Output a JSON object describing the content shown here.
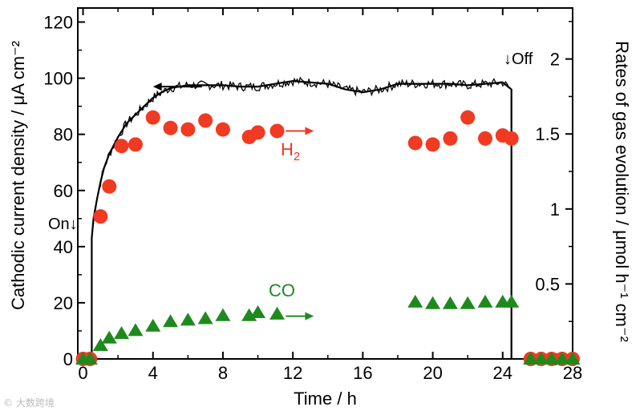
{
  "chart_data": {
    "type": "scatter",
    "xlabel": "Time / h",
    "ylabel_left": "Cathodic current density / μA cm⁻²",
    "ylabel_right": "Rates of gas evolution / μmol h⁻¹ cm⁻²",
    "xlim": [
      -0.3,
      28
    ],
    "ylim_left": [
      0,
      125
    ],
    "ylim_right": [
      0,
      2.34
    ],
    "x_ticks": [
      0,
      4,
      8,
      12,
      16,
      20,
      24,
      28
    ],
    "y_left_ticks": [
      0,
      20,
      40,
      60,
      80,
      100,
      120
    ],
    "y_right_ticks": [
      0,
      0.5,
      1,
      1.5,
      2
    ],
    "y_right_tick_labels": [
      "0",
      "0.5",
      "1",
      "1.5",
      "2"
    ],
    "series": [
      {
        "name": "Current density",
        "kind": "line",
        "axis": "left",
        "color": "#000000",
        "points": [
          [
            0.5,
            0
          ],
          [
            0.5,
            43
          ],
          [
            0.6,
            50
          ],
          [
            0.8,
            57
          ],
          [
            1.0,
            63
          ],
          [
            1.2,
            68
          ],
          [
            1.5,
            73
          ],
          [
            2,
            79
          ],
          [
            2.5,
            84
          ],
          [
            3,
            87
          ],
          [
            3.5,
            90
          ],
          [
            4,
            93
          ],
          [
            4.5,
            95
          ],
          [
            5,
            96.5
          ],
          [
            6,
            97.5
          ],
          [
            7,
            97.5
          ],
          [
            8,
            97.5
          ],
          [
            9,
            97
          ],
          [
            10,
            97
          ],
          [
            11,
            98
          ],
          [
            12,
            99
          ],
          [
            13,
            98.5
          ],
          [
            14,
            98
          ],
          [
            15,
            96
          ],
          [
            16,
            95
          ],
          [
            17,
            96
          ],
          [
            18,
            98
          ],
          [
            19,
            98
          ],
          [
            20,
            98
          ],
          [
            21,
            98
          ],
          [
            22,
            97.5
          ],
          [
            23,
            98
          ],
          [
            24,
            98.5
          ],
          [
            24.5,
            96
          ],
          [
            24.5,
            0
          ]
        ]
      },
      {
        "name": "H₂",
        "kind": "circle",
        "axis": "right",
        "color": "#f03a22",
        "points": [
          [
            0,
            0
          ],
          [
            0.4,
            0
          ],
          [
            1.0,
            0.95
          ],
          [
            1.5,
            1.15
          ],
          [
            2.2,
            1.42
          ],
          [
            3.0,
            1.43
          ],
          [
            4.0,
            1.61
          ],
          [
            5.0,
            1.54
          ],
          [
            6.0,
            1.53
          ],
          [
            7.0,
            1.59
          ],
          [
            8.0,
            1.53
          ],
          [
            9.5,
            1.48
          ],
          [
            10.0,
            1.51
          ],
          [
            11.1,
            1.52
          ],
          [
            19.0,
            1.44
          ],
          [
            20.0,
            1.43
          ],
          [
            21.0,
            1.47
          ],
          [
            22.0,
            1.61
          ],
          [
            23.0,
            1.47
          ],
          [
            24.0,
            1.49
          ],
          [
            24.5,
            1.47
          ],
          [
            25.6,
            0
          ],
          [
            26.2,
            0
          ],
          [
            26.8,
            0
          ],
          [
            27.4,
            0
          ],
          [
            28.0,
            0
          ]
        ]
      },
      {
        "name": "CO",
        "kind": "triangle",
        "axis": "right",
        "color": "#1e8a1e",
        "points": [
          [
            0,
            0
          ],
          [
            0.4,
            0
          ],
          [
            1.0,
            0.09
          ],
          [
            1.5,
            0.14
          ],
          [
            2.2,
            0.17
          ],
          [
            3.0,
            0.19
          ],
          [
            4.0,
            0.22
          ],
          [
            5.0,
            0.25
          ],
          [
            6.0,
            0.26
          ],
          [
            7.0,
            0.27
          ],
          [
            8.0,
            0.29
          ],
          [
            9.5,
            0.29
          ],
          [
            10.0,
            0.31
          ],
          [
            11.1,
            0.3
          ],
          [
            19.0,
            0.38
          ],
          [
            20.0,
            0.37
          ],
          [
            21.0,
            0.37
          ],
          [
            22.0,
            0.37
          ],
          [
            23.0,
            0.38
          ],
          [
            24.0,
            0.38
          ],
          [
            24.5,
            0.38
          ],
          [
            25.6,
            0
          ],
          [
            26.2,
            0
          ],
          [
            26.8,
            0
          ],
          [
            27.4,
            0
          ],
          [
            28.0,
            0
          ]
        ]
      }
    ],
    "annotations": {
      "on": "On↓",
      "off": "↓Off",
      "h2_label_main": "H",
      "h2_label_sub": "2",
      "co_label": "CO"
    }
  },
  "watermark": "© 大数跨境"
}
